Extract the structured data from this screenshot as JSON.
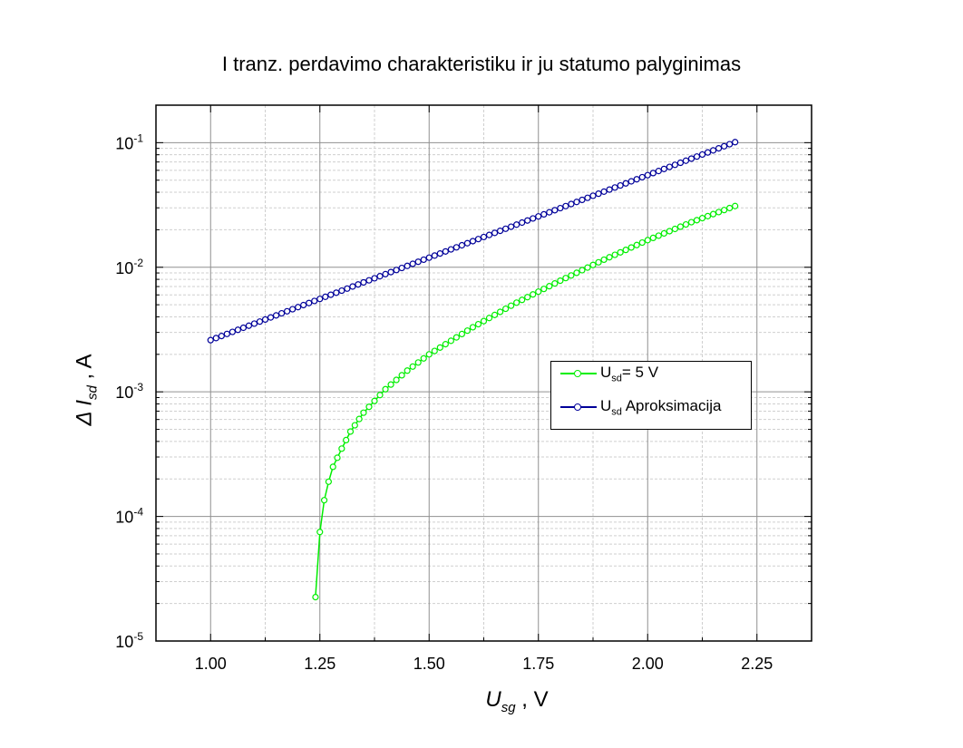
{
  "chart_data": {
    "type": "line",
    "title": "I tranz. perdavimo charakteristiku ir ju statumo palyginimas",
    "xlim": [
      0.875,
      2.375
    ],
    "ylim": [
      1e-05,
      0.2
    ],
    "y_scale": "log",
    "grid": true,
    "legend_position": "center-right",
    "x_ticks": [
      "1.00",
      "1.25",
      "1.50",
      "1.75",
      "2.00",
      "2.25"
    ],
    "x_tick_values": [
      1.0,
      1.25,
      1.5,
      1.75,
      2.0,
      2.25
    ],
    "y_ticks": [
      {
        "base": "10",
        "exp": "-1",
        "value": 0.1
      },
      {
        "base": "10",
        "exp": "-2",
        "value": 0.01
      },
      {
        "base": "10",
        "exp": "-3",
        "value": 0.001
      },
      {
        "base": "10",
        "exp": "-4",
        "value": 0.0001
      },
      {
        "base": "10",
        "exp": "-5",
        "value": 1e-05
      }
    ],
    "xlabel": {
      "main": "U",
      "sub": "sg",
      "rest": " , V"
    },
    "ylabel": {
      "prefix": "Δ ",
      "main": "I",
      "sub": "sd",
      "rest": " , A"
    },
    "series": [
      {
        "name_main": "U",
        "name_sub": "sd",
        "name_rest": "= 5 V",
        "color": "#00ee00",
        "x": [
          1.24,
          1.25,
          1.26,
          1.27,
          1.28,
          1.3,
          1.32,
          1.35,
          1.4,
          1.45,
          1.5,
          1.6,
          1.7,
          1.8,
          1.9,
          2.0,
          2.1,
          2.2
        ],
        "y": [
          2.25e-05,
          7.5e-05,
          0.000135,
          0.00019,
          0.00025,
          0.00035,
          0.00048,
          0.00068,
          0.00105,
          0.00148,
          0.002,
          0.0033,
          0.0052,
          0.0078,
          0.0115,
          0.0165,
          0.023,
          0.031
        ]
      },
      {
        "name_main": "U",
        "name_sub": "sd",
        "name_rest": " Aproksimacija",
        "color": "#000099",
        "x": [
          1.0,
          2.2
        ],
        "y": [
          0.0026,
          0.101
        ]
      }
    ]
  }
}
